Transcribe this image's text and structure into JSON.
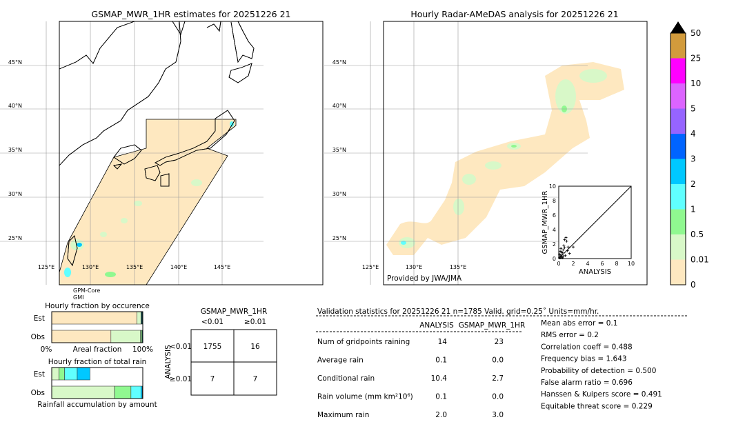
{
  "left_map": {
    "title": "GSMAP_MWR_1HR estimates for 20251226 21",
    "lat_labels": [
      "45°N",
      "40°N",
      "35°N",
      "30°N",
      "25°N"
    ],
    "lon_labels": [
      "125°E",
      "130°E",
      "135°E",
      "140°E",
      "145°E"
    ],
    "sensor": [
      "GPM-Core",
      "GMI"
    ]
  },
  "right_map": {
    "title": "Hourly Radar-AMeDAS analysis for 20251226 21",
    "lat_labels": [
      "45°N",
      "40°N",
      "35°N",
      "30°N",
      "25°N"
    ],
    "lon_labels": [
      "125°E",
      "130°E",
      "135°E"
    ],
    "credit": "Provided by JWA/JMA"
  },
  "colorbar": {
    "labels": [
      "0",
      "0.01",
      "0.5",
      "1",
      "2",
      "3",
      "4",
      "5",
      "10",
      "25",
      "50"
    ],
    "colors": [
      "#fee8c0",
      "#d8f8c8",
      "#90f890",
      "#60ffff",
      "#00c8ff",
      "#0064ff",
      "#9664ff",
      "#dc64ff",
      "#ff00ff",
      "#d29b3c"
    ],
    "extend_color": "#000000"
  },
  "chart_data": [
    {
      "type": "scatter",
      "xlabel": "ANALYSIS",
      "ylabel": "GSMAP_MWR_1HR",
      "xlim": [
        0,
        10
      ],
      "ylim": [
        0,
        10
      ],
      "xticks": [
        "0",
        "2",
        "4",
        "6",
        "8",
        "10"
      ],
      "yticks": [
        "0",
        "2",
        "4",
        "6",
        "8",
        "10"
      ],
      "points": [
        [
          0.1,
          0.1
        ],
        [
          0.2,
          0.3
        ],
        [
          0.3,
          0.5
        ],
        [
          0.4,
          0.2
        ],
        [
          0.5,
          0.8
        ],
        [
          0.2,
          1.0
        ],
        [
          0.6,
          1.2
        ],
        [
          0.8,
          2.6
        ],
        [
          1.0,
          2.9
        ],
        [
          1.1,
          2.4
        ],
        [
          0.7,
          1.8
        ],
        [
          1.3,
          1.6
        ],
        [
          2.0,
          1.6
        ],
        [
          1.5,
          0.7
        ],
        [
          0.3,
          1.4
        ],
        [
          0.9,
          0.4
        ],
        [
          0.5,
          0.1
        ],
        [
          0.1,
          0.6
        ],
        [
          0.4,
          0.9
        ],
        [
          1.2,
          1.1
        ],
        [
          0.6,
          0.3
        ],
        [
          0.2,
          0.1
        ],
        [
          0.8,
          1.5
        ]
      ]
    },
    {
      "type": "bar",
      "title": "Hourly fraction by occurence",
      "categories": [
        "Est",
        "Obs"
      ],
      "xlabel": "Areal fraction",
      "xticks": [
        "0%",
        "100%"
      ],
      "series": [
        {
          "values": [
            0.935,
            0.65
          ],
          "color": "#fee8c0"
        },
        {
          "values": [
            0.045,
            0.325
          ],
          "color": "#d8f8c8"
        },
        {
          "values": [
            0.0,
            0.015
          ],
          "color": "#90f890"
        },
        {
          "values": [
            0.02,
            0.01
          ],
          "color": "#1a4a4a"
        }
      ]
    },
    {
      "type": "bar",
      "title": "Hourly fraction of total rain",
      "categories": [
        "Est",
        "Obs"
      ],
      "xlabel": "Rainfall accumulation by amount",
      "series": [
        {
          "values": [
            0.08,
            0.69
          ],
          "color": "#d8f8c8"
        },
        {
          "values": [
            0.06,
            0.18
          ],
          "color": "#90f890"
        },
        {
          "values": [
            0.14,
            0.11
          ],
          "color": "#60ffff"
        },
        {
          "values": [
            0.14,
            0.015
          ],
          "color": "#00c8ff"
        }
      ]
    }
  ],
  "contingency": {
    "col_title": "GSMAP_MWR_1HR",
    "col_labels": [
      "<0.01",
      "≥0.01"
    ],
    "row_title": "ANALYSIS",
    "row_labels": [
      "<0.01",
      "≥0.01"
    ],
    "cells": [
      [
        "1755",
        "16"
      ],
      [
        "7",
        "7"
      ]
    ]
  },
  "stats": {
    "header": "Validation statistics for 20251226 21  n=1785 Valid. grid=0.25˚ Units=mm/hr.",
    "col_analysis": "ANALYSIS",
    "col_gsmap": "GSMAP_MWR_1HR",
    "rows": [
      {
        "label": "Num of gridpoints raining",
        "analysis": "14",
        "gsmap": "23"
      },
      {
        "label": "Average rain",
        "analysis": "0.1",
        "gsmap": "0.0"
      },
      {
        "label": "Conditional rain",
        "analysis": "10.4",
        "gsmap": "2.7"
      },
      {
        "label": "Rain volume (mm km²10⁶)",
        "analysis": "0.1",
        "gsmap": "0.0"
      },
      {
        "label": "Maximum rain",
        "analysis": "2.0",
        "gsmap": "3.0"
      }
    ],
    "scores": [
      "Mean abs error =    0.1",
      "RMS error =    0.2",
      "Correlation coeff =  0.488",
      "Frequency bias =  1.643",
      "Probability of detection =  0.500",
      "False alarm ratio =  0.696",
      "Hanssen & Kuipers score =  0.491",
      "Equitable threat score =  0.229"
    ]
  }
}
